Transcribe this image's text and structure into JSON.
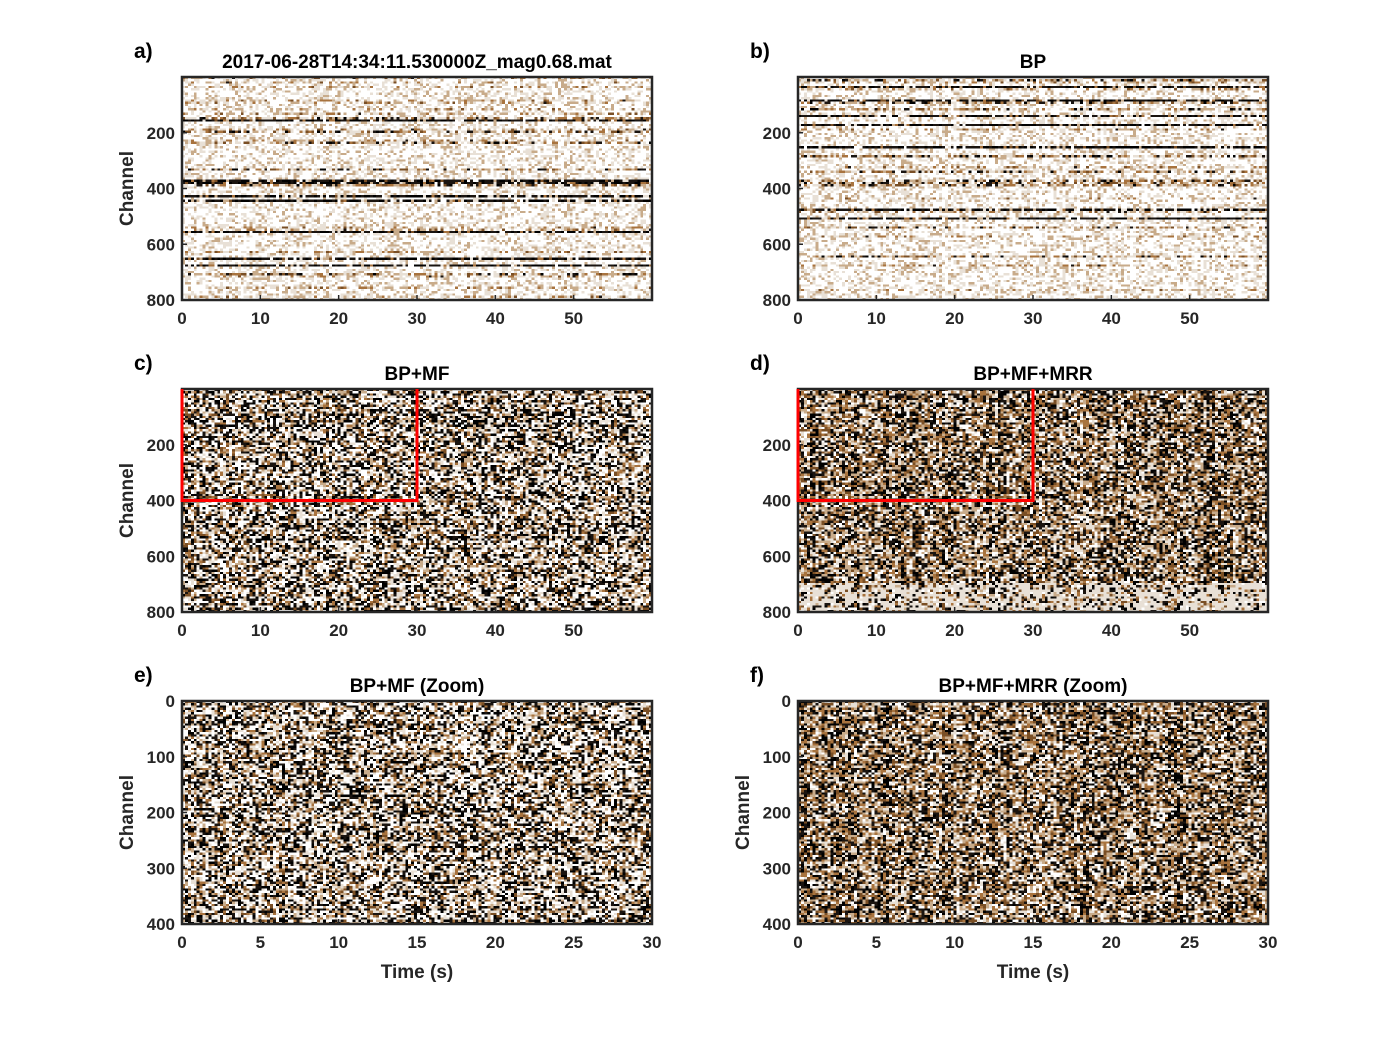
{
  "figure": {
    "colors": {
      "background": "#ffffff",
      "axis": "#262626",
      "box_outline": "red",
      "seismic_palette": [
        "#ffffff",
        "#e8e0d6",
        "#c8ab8a",
        "#a8733e",
        "#7a4f25",
        "#1a1410",
        "#000000"
      ]
    }
  },
  "chart_data": [
    {
      "id": "a",
      "panel_label": "a)",
      "title": "2017-06-28T14:34:11.530000Z_mag0.68.mat",
      "type": "heatmap",
      "xlabel": "",
      "ylabel": "Channel",
      "xlim": [
        0,
        60
      ],
      "ylim": [
        800,
        0
      ],
      "xticks": [
        0,
        10,
        20,
        30,
        40,
        50
      ],
      "yticks": [
        200,
        400,
        600,
        800
      ],
      "texture": "striped",
      "highlight_box": null
    },
    {
      "id": "b",
      "panel_label": "b)",
      "title": "BP",
      "type": "heatmap",
      "xlabel": "",
      "ylabel": "",
      "xlim": [
        0,
        60
      ],
      "ylim": [
        800,
        0
      ],
      "xticks": [
        0,
        10,
        20,
        30,
        40,
        50
      ],
      "yticks": [
        200,
        400,
        600,
        800
      ],
      "texture": "striped",
      "highlight_box": null
    },
    {
      "id": "c",
      "panel_label": "c)",
      "title": "BP+MF",
      "type": "heatmap",
      "xlabel": "",
      "ylabel": "Channel",
      "xlim": [
        0,
        60
      ],
      "ylim": [
        800,
        0
      ],
      "xticks": [
        0,
        10,
        20,
        30,
        40,
        50
      ],
      "yticks": [
        200,
        400,
        600,
        800
      ],
      "texture": "filtered",
      "highlight_box": {
        "x": [
          0,
          30
        ],
        "y": [
          0,
          400
        ]
      }
    },
    {
      "id": "d",
      "panel_label": "d)",
      "title": "BP+MF+MRR",
      "type": "heatmap",
      "xlabel": "",
      "ylabel": "",
      "xlim": [
        0,
        60
      ],
      "ylim": [
        800,
        0
      ],
      "xticks": [
        0,
        10,
        20,
        30,
        40,
        50
      ],
      "yticks": [
        200,
        400,
        600,
        800
      ],
      "texture": "denoised",
      "highlight_box": {
        "x": [
          0,
          30
        ],
        "y": [
          0,
          400
        ]
      }
    },
    {
      "id": "e",
      "panel_label": "e)",
      "title": "BP+MF (Zoom)",
      "type": "heatmap",
      "xlabel": "Time (s)",
      "ylabel": "Channel",
      "xlim": [
        0,
        30
      ],
      "ylim": [
        400,
        0
      ],
      "xticks": [
        0,
        5,
        10,
        15,
        20,
        25,
        30
      ],
      "yticks": [
        0,
        100,
        200,
        300,
        400
      ],
      "texture": "filtered-zoom",
      "highlight_box": null
    },
    {
      "id": "f",
      "panel_label": "f)",
      "title": "BP+MF+MRR (Zoom)",
      "type": "heatmap",
      "xlabel": "Time (s)",
      "ylabel": "Channel",
      "xlim": [
        0,
        30
      ],
      "ylim": [
        400,
        0
      ],
      "xticks": [
        0,
        5,
        10,
        15,
        20,
        25,
        30
      ],
      "yticks": [
        0,
        100,
        200,
        300,
        400
      ],
      "texture": "denoised-zoom",
      "highlight_box": null
    }
  ]
}
